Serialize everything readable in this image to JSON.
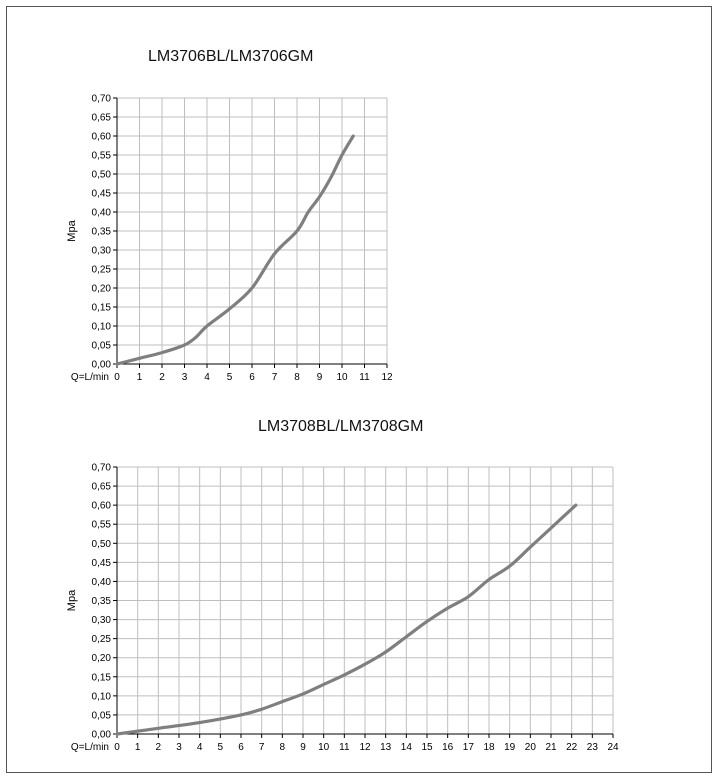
{
  "colors": {
    "line": "#7f7f7f",
    "grid": "#bfbfbf",
    "axis": "#000000",
    "frame": "#555555"
  },
  "chart_data": [
    {
      "type": "line",
      "title": "LM3706BL/LM3706GM",
      "xlabel": "Q=L/min",
      "ylabel": "Mpa",
      "xlim": [
        0,
        12
      ],
      "ylim": [
        0,
        0.7
      ],
      "x_ticks": [
        "0",
        "1",
        "2",
        "3",
        "4",
        "5",
        "6",
        "7",
        "8",
        "9",
        "10",
        "11",
        "12"
      ],
      "y_ticks": [
        "0,00",
        "0,05",
        "0,10",
        "0,15",
        "0,20",
        "0,25",
        "0,30",
        "0,35",
        "0,40",
        "0,45",
        "0,50",
        "0,55",
        "0,60",
        "0,65",
        "0,70"
      ],
      "grid": true,
      "series": [
        {
          "x": [
            0,
            1,
            2,
            3,
            3.5,
            4,
            5,
            6,
            7,
            8,
            8.5,
            9,
            9.5,
            10,
            10.5
          ],
          "y": [
            0,
            0.015,
            0.03,
            0.05,
            0.07,
            0.1,
            0.145,
            0.2,
            0.29,
            0.35,
            0.4,
            0.44,
            0.49,
            0.55,
            0.6
          ]
        }
      ]
    },
    {
      "type": "line",
      "title": "LM3708BL/LM3708GM",
      "xlabel": "Q=L/min",
      "ylabel": "Mpa",
      "xlim": [
        0,
        24
      ],
      "ylim": [
        0,
        0.7
      ],
      "x_ticks": [
        "0",
        "1",
        "2",
        "3",
        "4",
        "5",
        "6",
        "7",
        "8",
        "9",
        "10",
        "11",
        "12",
        "13",
        "14",
        "15",
        "16",
        "17",
        "18",
        "19",
        "20",
        "21",
        "22",
        "23",
        "24"
      ],
      "y_ticks": [
        "0,00",
        "0,05",
        "0,10",
        "0,15",
        "0,20",
        "0,25",
        "0,30",
        "0,35",
        "0,40",
        "0,45",
        "0,50",
        "0,55",
        "0,60",
        "0,65",
        "0,70"
      ],
      "grid": true,
      "series": [
        {
          "x": [
            0,
            2,
            4,
            6,
            7,
            8,
            9,
            10,
            11,
            12,
            13,
            14,
            15,
            16,
            17,
            18,
            19,
            20,
            21,
            22.2
          ],
          "y": [
            0,
            0.015,
            0.03,
            0.05,
            0.065,
            0.085,
            0.105,
            0.13,
            0.155,
            0.183,
            0.215,
            0.255,
            0.295,
            0.33,
            0.36,
            0.405,
            0.44,
            0.49,
            0.54,
            0.6
          ]
        }
      ]
    }
  ]
}
